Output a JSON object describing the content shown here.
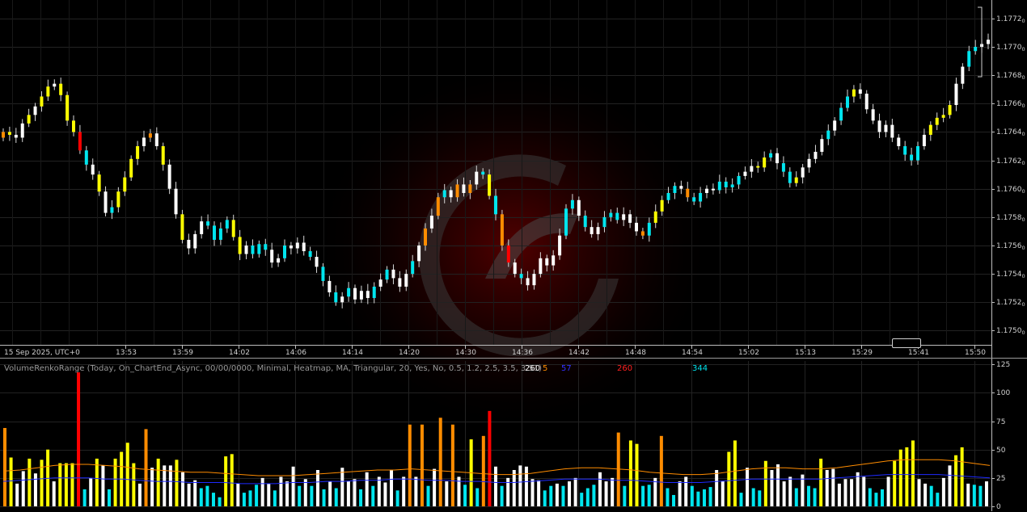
{
  "chart_data": [
    {
      "type": "candlestick",
      "title": "",
      "timezone_label": "15 Sep 2025, UTC+0",
      "x_tick_labels": [
        "13:53",
        "13:59",
        "14:02",
        "14:06",
        "14:14",
        "14:20",
        "14:30",
        "14:36",
        "14:42",
        "14:48",
        "14:54",
        "15:02",
        "15:13",
        "15:29",
        "15:41",
        "15:50"
      ],
      "y_tick_labels": [
        "1.1772",
        "1.1770",
        "1.1768",
        "1.1766",
        "1.1764",
        "1.1762",
        "1.1760",
        "1.1758",
        "1.1756",
        "1.1754",
        "1.1752",
        "1.1750"
      ],
      "y_tick_suffix": "0",
      "ylim": [
        1.1749,
        1.17733
      ],
      "grid": true,
      "colors": {
        "low": "#00E5EE",
        "mid": "#FFFFFF",
        "high": "#FFFF00",
        "veryhigh": "#FF8C00",
        "extreme": "#FF0000"
      },
      "closes": [
        1.1764,
        1.17638,
        1.17636,
        1.17646,
        1.17652,
        1.17658,
        1.17665,
        1.17672,
        1.17674,
        1.17666,
        1.17648,
        1.1764,
        1.17627,
        1.17617,
        1.1761,
        1.17598,
        1.17583,
        1.17587,
        1.17598,
        1.17608,
        1.17621,
        1.1763,
        1.17636,
        1.17639,
        1.1763,
        1.17617,
        1.176,
        1.17582,
        1.17564,
        1.17558,
        1.17568,
        1.17577,
        1.17574,
        1.17564,
        1.17572,
        1.17578,
        1.17566,
        1.17554,
        1.1756,
        1.17554,
        1.17561,
        1.17557,
        1.17548,
        1.17551,
        1.1756,
        1.17558,
        1.17562,
        1.17556,
        1.17552,
        1.17545,
        1.17535,
        1.17527,
        1.1752,
        1.17524,
        1.1753,
        1.17522,
        1.17528,
        1.17523,
        1.17531,
        1.17536,
        1.17543,
        1.17537,
        1.17531,
        1.1754,
        1.17549,
        1.1756,
        1.17572,
        1.17581,
        1.17594,
        1.17599,
        1.17594,
        1.17603,
        1.17597,
        1.17603,
        1.17612,
        1.1761,
        1.17595,
        1.17582,
        1.1756,
        1.17548,
        1.1754,
        1.17537,
        1.17532,
        1.1754,
        1.17551,
        1.17546,
        1.17553,
        1.17567,
        1.17586,
        1.17592,
        1.17581,
        1.17573,
        1.17568,
        1.17573,
        1.1758,
        1.17583,
        1.17578,
        1.17582,
        1.17576,
        1.1757,
        1.17567,
        1.17576,
        1.17584,
        1.17592,
        1.17597,
        1.17602,
        1.176,
        1.17594,
        1.17591,
        1.17597,
        1.176,
        1.17599,
        1.17605,
        1.17601,
        1.17603,
        1.17609,
        1.17612,
        1.17616,
        1.17615,
        1.17622,
        1.17625,
        1.17618,
        1.17612,
        1.17604,
        1.17608,
        1.17615,
        1.17621,
        1.17626,
        1.17635,
        1.17641,
        1.17648,
        1.17657,
        1.17665,
        1.1767,
        1.17667,
        1.17656,
        1.17648,
        1.1764,
        1.17645,
        1.17636,
        1.1763,
        1.17624,
        1.1762,
        1.1763,
        1.17638,
        1.17645,
        1.1765,
        1.17652,
        1.17659,
        1.17674,
        1.17686,
        1.17697,
        1.177,
        1.17702,
        1.17705
      ],
      "volume_panel": {
        "indicator_label": "VolumeRenkoRange (Today, On_ChartEnd_Async, 00/00/0000, Minimal, Heatmap, MA, Triangular, 20, Yes, No, 0.5, 1.2, 2.5, 3.5, 3.51)",
        "readouts": [
          {
            "text": "260",
            "color": "#FFFFFF"
          },
          {
            "text": "5",
            "color": "#FF8C00"
          },
          {
            "text": "57",
            "color": "#3030FF"
          },
          {
            "text": "260",
            "color": "#FF2020"
          },
          {
            "text": "344",
            "color": "#00E5EE"
          }
        ],
        "y_tick_labels": [
          "125",
          "100",
          "75",
          "50",
          "25",
          "0"
        ],
        "ylim": [
          0,
          128
        ],
        "volumes": [
          69,
          43,
          20,
          31,
          42,
          29,
          41,
          50,
          22,
          38,
          38,
          38,
          118,
          15,
          25,
          42,
          36,
          15,
          42,
          48,
          56,
          38,
          20,
          68,
          34,
          42,
          36,
          36,
          41,
          30,
          20,
          23,
          16,
          18,
          12,
          8,
          44,
          46,
          20,
          12,
          14,
          19,
          25,
          20,
          14,
          26,
          22,
          35,
          18,
          24,
          18,
          32,
          15,
          22,
          16,
          34,
          22,
          24,
          15,
          30,
          18,
          26,
          21,
          32,
          14,
          26,
          72,
          26,
          72,
          18,
          33,
          78,
          22,
          72,
          26,
          19,
          59,
          16,
          62,
          84,
          35,
          18,
          25,
          32,
          36,
          35,
          24,
          23,
          14,
          18,
          20,
          18,
          22,
          25,
          12,
          16,
          19,
          30,
          22,
          25,
          65,
          18,
          58,
          55,
          18,
          19,
          25,
          62,
          16,
          10,
          22,
          26,
          18,
          13,
          15,
          17,
          32,
          22,
          48,
          58,
          12,
          34,
          16,
          14,
          40,
          32,
          37,
          22,
          26,
          16,
          28,
          18,
          16,
          42,
          32,
          33,
          20,
          24,
          24,
          30,
          26,
          16,
          12,
          15,
          26,
          40,
          50,
          52,
          58,
          24,
          20,
          18,
          12,
          25,
          36,
          45,
          52,
          20,
          19,
          18,
          22
        ],
        "ma_series": [
          {
            "name": "",
            "color": "#FF8C00",
            "values": [
              31,
              32,
              34,
              36,
              37,
              37,
              36,
              35,
              33,
              32,
              31,
              30,
              30,
              29,
              28,
              27,
              27,
              27,
              28,
              29,
              30,
              31,
              32,
              32,
              33,
              32,
              31,
              30,
              29,
              28,
              28,
              29,
              31,
              33,
              34,
              34,
              33,
              32,
              30,
              29,
              28,
              28,
              29,
              31,
              33,
              34,
              34,
              33,
              33,
              34,
              36,
              38,
              40,
              41,
              41,
              41,
              40,
              38,
              36
            ]
          },
          {
            "name": "",
            "color": "#1E2AFF",
            "values": [
              22,
              23,
              24,
              25,
              25,
              25,
              24,
              24,
              23,
              22,
              22,
              21,
              21,
              21,
              20,
              20,
              20,
              21,
              21,
              22,
              22,
              23,
              23,
              24,
              24,
              23,
              23,
              22,
              22,
              21,
              21,
              22,
              23,
              24,
              24,
              24,
              23,
              23,
              22,
              21,
              21,
              21,
              22,
              23,
              24,
              24,
              24,
              24,
              24,
              25,
              26,
              27,
              28,
              28,
              28,
              28,
              27,
              26,
              25
            ]
          }
        ]
      }
    }
  ]
}
